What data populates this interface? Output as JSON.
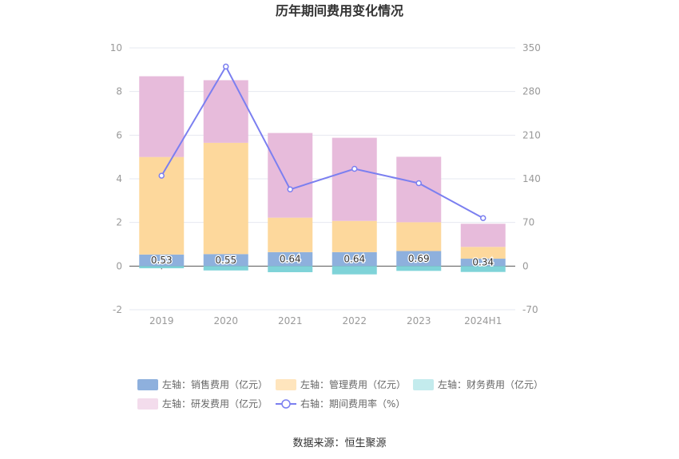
{
  "chart_data": {
    "type": "bar",
    "title": "历年期间费用变化情况",
    "categories": [
      "2019",
      "2020",
      "2021",
      "2022",
      "2023",
      "2024H1"
    ],
    "left_axis": {
      "ylim": [
        -2,
        10
      ],
      "ticks": [
        "-2",
        "0",
        "2",
        "4",
        "6",
        "8",
        "10"
      ]
    },
    "right_axis": {
      "ylim": [
        -70,
        350
      ],
      "ticks": [
        "-70",
        "0",
        "70",
        "140",
        "210",
        "280",
        "350"
      ]
    },
    "series": [
      {
        "name": "左轴：销售费用（亿元）",
        "axis": "left",
        "stack": "pos",
        "color": "#8eb0dd",
        "values": [
          0.53,
          0.55,
          0.64,
          0.64,
          0.69,
          0.34
        ],
        "show_labels": true
      },
      {
        "name": "左轴：管理费用（亿元）",
        "axis": "left",
        "stack": "pos",
        "color": "#fdd89c",
        "values": [
          4.47,
          5.1,
          1.58,
          1.43,
          1.32,
          0.54
        ]
      },
      {
        "name": "左轴：财务费用（亿元）",
        "axis": "left",
        "stack": "neg",
        "color": "#7fd3d8",
        "values": [
          -0.1,
          -0.2,
          -0.28,
          -0.38,
          -0.22,
          -0.27
        ]
      },
      {
        "name": "左轴：研发费用（亿元）",
        "axis": "left",
        "stack": "pos",
        "color": "#e7bbdb",
        "values": [
          3.7,
          2.87,
          3.88,
          3.81,
          3.0,
          1.06
        ]
      },
      {
        "name": "右轴：期间费用率（%）",
        "axis": "right",
        "type": "line",
        "color": "#7b7ff0",
        "values": [
          145,
          320,
          123,
          156,
          133,
          77
        ]
      }
    ],
    "data_labels": [
      "0.53",
      "0.55",
      "0.64",
      "0.64",
      "0.69",
      "0.34"
    ],
    "legend_position": "bottom",
    "grid": true
  },
  "legend": [
    {
      "label": "左轴：销售费用（亿元）",
      "color": "#8eb0dd",
      "kind": "box"
    },
    {
      "label": "左轴：管理费用（亿元）",
      "color": "#ffe5bd",
      "kind": "box"
    },
    {
      "label": "左轴：财务费用（亿元）",
      "color": "#c3ebed",
      "kind": "box"
    },
    {
      "label": "左轴：研发费用（亿元）",
      "color": "#f3dcec",
      "kind": "box"
    },
    {
      "label": "右轴：期间费用率（%）",
      "color": "#7b7ff0",
      "kind": "line"
    }
  ],
  "source": "数据来源：恒生聚源"
}
